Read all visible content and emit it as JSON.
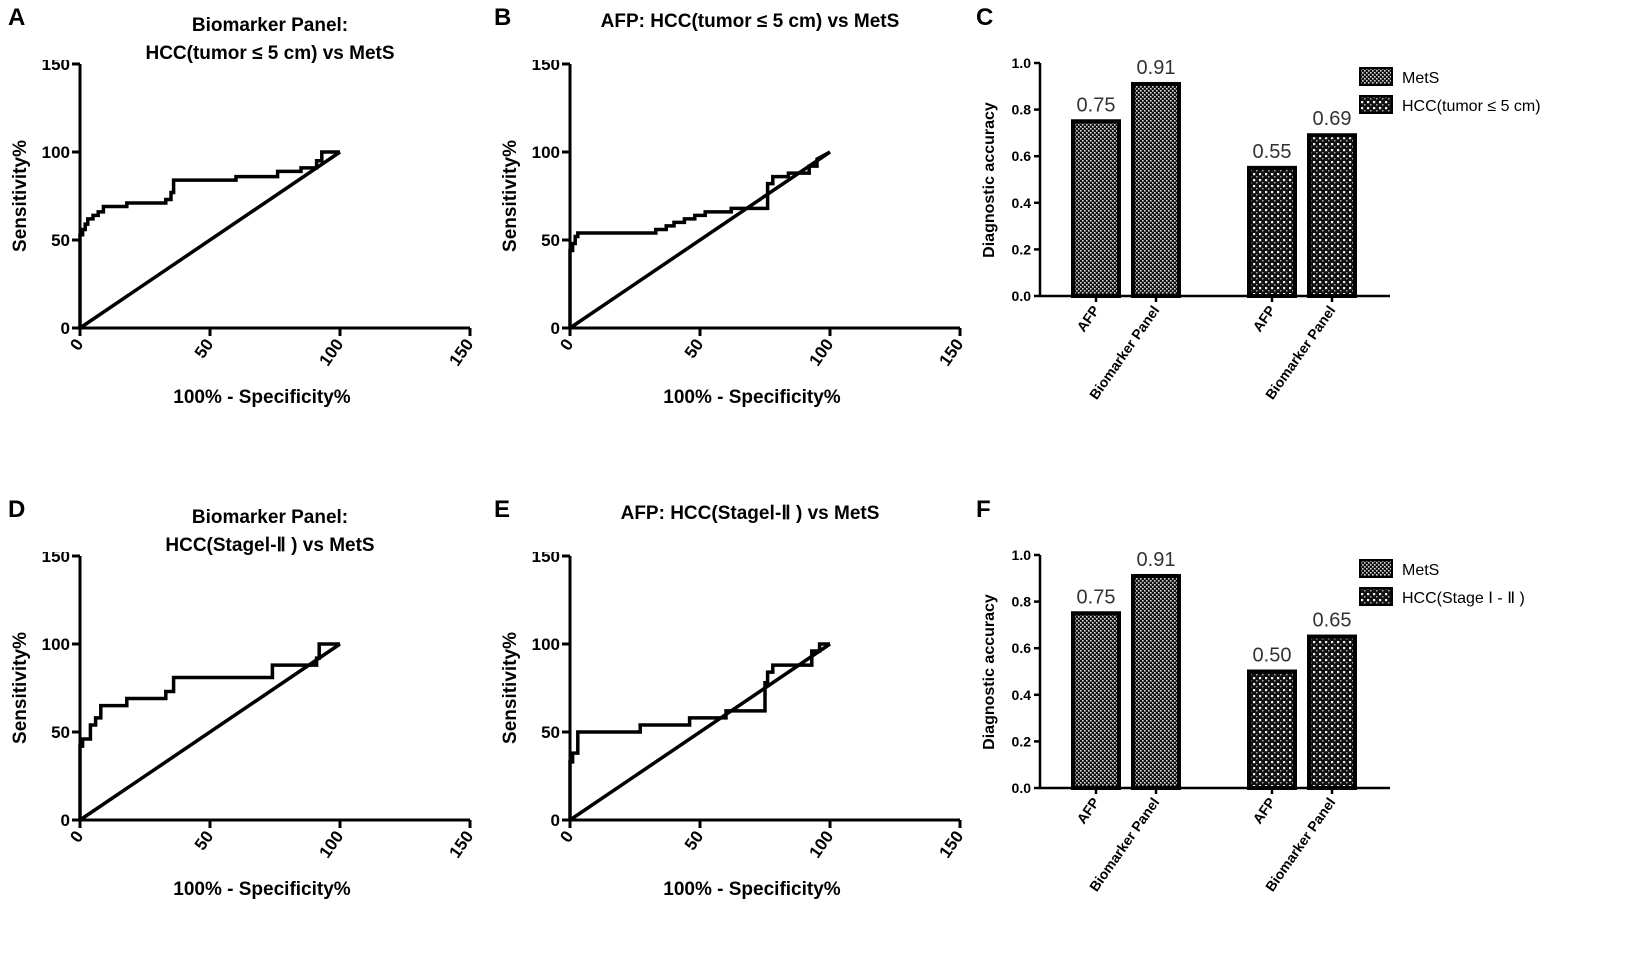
{
  "panels": {
    "A": {
      "letter": "A",
      "title_line1": "Biomarker Panel:",
      "title_line2": "HCC(tumor ≤  5 cm) vs MetS"
    },
    "B": {
      "letter": "B",
      "title_line1": "AFP: HCC(tumor ≤  5 cm) vs MetS"
    },
    "C": {
      "letter": "C"
    },
    "D": {
      "letter": "D",
      "title_line1": "Biomarker Panel:",
      "title_line2": "HCC(StageⅠ-Ⅱ ) vs MetS"
    },
    "E": {
      "letter": "E",
      "title_line1": "AFP: HCC(StageⅠ-Ⅱ ) vs MetS"
    },
    "F": {
      "letter": "F"
    }
  },
  "chart_data": [
    {
      "id": "A",
      "type": "line",
      "title": "Biomarker Panel: HCC(tumor ≤  5 cm) vs MetS",
      "xlabel": "100% - Specificity%",
      "ylabel": "Sensitivity%",
      "xlim": [
        0,
        150
      ],
      "ylim": [
        0,
        150
      ],
      "xticks": [
        "0",
        "50",
        "100",
        "150"
      ],
      "yticks": [
        "0",
        "50",
        "100",
        "150"
      ],
      "series": [
        {
          "name": "ROC",
          "x": [
            0,
            0,
            1,
            1,
            2,
            2,
            3,
            3,
            5,
            5,
            7,
            7,
            9,
            9,
            18,
            18,
            33,
            33,
            35,
            35,
            36,
            36,
            60,
            60,
            76,
            76,
            85,
            85,
            91,
            91,
            93,
            93,
            100
          ],
          "y": [
            0,
            53,
            53,
            56,
            56,
            59,
            59,
            62,
            62,
            64,
            64,
            66,
            66,
            69,
            69,
            71,
            71,
            73,
            73,
            77,
            77,
            84,
            84,
            86,
            86,
            89,
            89,
            91,
            91,
            95,
            95,
            100,
            100
          ]
        },
        {
          "name": "Reference line",
          "x": [
            0,
            100
          ],
          "y": [
            0,
            100
          ]
        }
      ]
    },
    {
      "id": "B",
      "type": "line",
      "title": "AFP: HCC(tumor ≤  5 cm) vs MetS",
      "xlabel": "100% - Specificity%",
      "ylabel": "Sensitivity%",
      "xlim": [
        0,
        150
      ],
      "ylim": [
        0,
        150
      ],
      "xticks": [
        "0",
        "50",
        "100",
        "150"
      ],
      "yticks": [
        "0",
        "50",
        "100",
        "150"
      ],
      "series": [
        {
          "name": "ROC",
          "x": [
            0,
            0,
            1,
            1,
            2,
            2,
            3,
            3,
            33,
            33,
            37,
            37,
            40,
            40,
            44,
            44,
            48,
            48,
            52,
            52,
            62,
            62,
            76,
            76,
            78,
            78,
            84,
            84,
            92,
            92,
            95,
            95,
            100
          ],
          "y": [
            0,
            44,
            44,
            48,
            48,
            52,
            52,
            54,
            54,
            56,
            56,
            58,
            58,
            60,
            60,
            62,
            62,
            64,
            64,
            66,
            66,
            68,
            68,
            82,
            82,
            86,
            86,
            88,
            88,
            92,
            92,
            96,
            100
          ]
        },
        {
          "name": "Reference line",
          "x": [
            0,
            100
          ],
          "y": [
            0,
            100
          ]
        }
      ]
    },
    {
      "id": "C",
      "type": "bar",
      "ylabel": "Diagnostic accuracy",
      "ylim": [
        0,
        1.0
      ],
      "yticks": [
        "0.0",
        "0.2",
        "0.4",
        "0.6",
        "0.8",
        "1.0"
      ],
      "categories": [
        "AFP",
        "Biomarker Panel",
        "AFP",
        "Biomarker Panel"
      ],
      "groups": [
        "MetS",
        "HCC(tumor ≤ 5 cm)"
      ],
      "values": [
        0.75,
        0.91,
        0.55,
        0.69
      ],
      "value_labels": [
        "0.75",
        "0.91",
        "0.55",
        "0.69"
      ],
      "legend": [
        "MetS",
        "HCC(tumor ≤ 5 cm)"
      ],
      "legend_position": "top-right"
    },
    {
      "id": "D",
      "type": "line",
      "title": "Biomarker Panel: HCC(StageⅠ-Ⅱ ) vs MetS",
      "xlabel": "100% - Specificity%",
      "ylabel": "Sensitivity%",
      "xlim": [
        0,
        150
      ],
      "ylim": [
        0,
        150
      ],
      "xticks": [
        "0",
        "50",
        "100",
        "150"
      ],
      "yticks": [
        "0",
        "50",
        "100",
        "150"
      ],
      "series": [
        {
          "name": "ROC",
          "x": [
            0,
            0,
            1,
            1,
            4,
            4,
            6,
            6,
            8,
            8,
            18,
            18,
            33,
            33,
            36,
            36,
            74,
            74,
            91,
            91,
            92,
            92,
            100
          ],
          "y": [
            0,
            42,
            42,
            46,
            46,
            54,
            54,
            58,
            58,
            65,
            65,
            69,
            69,
            73,
            73,
            81,
            81,
            88,
            88,
            92,
            92,
            100,
            100
          ]
        },
        {
          "name": "Reference line",
          "x": [
            0,
            100
          ],
          "y": [
            0,
            100
          ]
        }
      ]
    },
    {
      "id": "E",
      "type": "line",
      "title": "AFP: HCC(StageⅠ-Ⅱ ) vs MetS",
      "xlabel": "100% - Specificity%",
      "ylabel": "Sensitivity%",
      "xlim": [
        0,
        150
      ],
      "ylim": [
        0,
        150
      ],
      "xticks": [
        "0",
        "50",
        "100",
        "150"
      ],
      "yticks": [
        "0",
        "50",
        "100",
        "150"
      ],
      "series": [
        {
          "name": "ROC",
          "x": [
            0,
            0,
            1,
            1,
            3,
            3,
            27,
            27,
            46,
            46,
            60,
            60,
            75,
            75,
            76,
            76,
            78,
            78,
            93,
            93,
            96,
            96,
            100
          ],
          "y": [
            0,
            33,
            33,
            38,
            38,
            50,
            50,
            54,
            54,
            58,
            58,
            62,
            62,
            78,
            78,
            84,
            84,
            88,
            88,
            96,
            96,
            100,
            100
          ]
        },
        {
          "name": "Reference line",
          "x": [
            0,
            100
          ],
          "y": [
            0,
            100
          ]
        }
      ]
    },
    {
      "id": "F",
      "type": "bar",
      "ylabel": "Diagnostic accuracy",
      "ylim": [
        0,
        1.0
      ],
      "yticks": [
        "0.0",
        "0.2",
        "0.4",
        "0.6",
        "0.8",
        "1.0"
      ],
      "categories": [
        "AFP",
        "Biomarker Panel",
        "AFP",
        "Biomarker Panel"
      ],
      "groups": [
        "MetS",
        "HCC(Stage Ⅰ - Ⅱ )"
      ],
      "values": [
        0.75,
        0.91,
        0.5,
        0.65
      ],
      "value_labels": [
        "0.75",
        "0.91",
        "0.50",
        "0.65"
      ],
      "legend": [
        "MetS",
        "HCC(Stage Ⅰ - Ⅱ )"
      ],
      "legend_position": "top-right"
    }
  ]
}
